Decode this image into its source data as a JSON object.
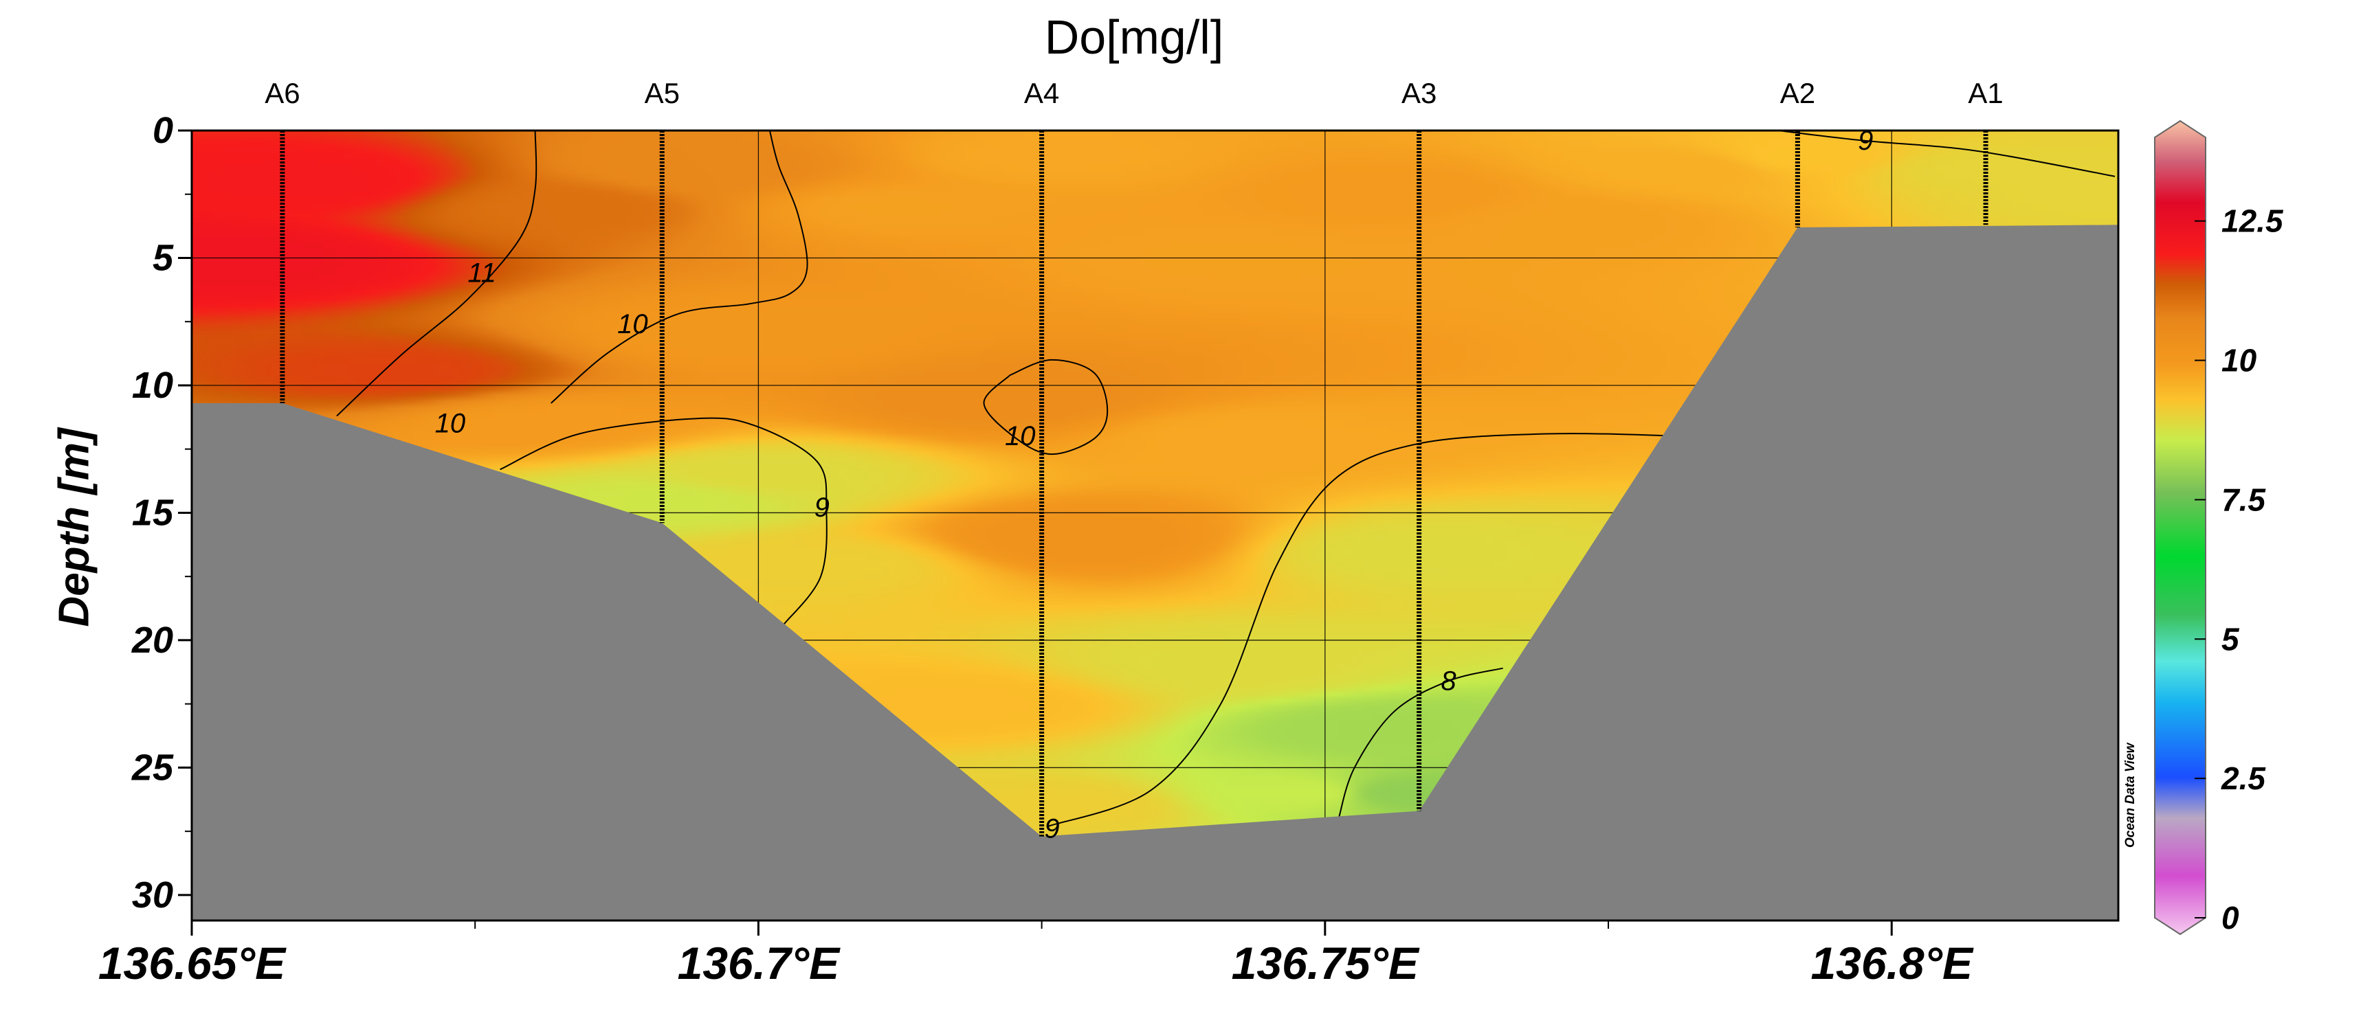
{
  "chart_data": {
    "type": "heatmap",
    "title": "Do[mg/l]",
    "ylabel": "Depth [m]",
    "xlabel": "",
    "xlim": [
      136.65,
      136.82
    ],
    "ylim": [
      31,
      0
    ],
    "x_ticks": [
      136.65,
      136.7,
      136.75,
      136.8
    ],
    "x_tick_labels": [
      "136.65°E",
      "136.7°E",
      "136.75°E",
      "136.8°E"
    ],
    "y_ticks": [
      0,
      5,
      10,
      15,
      20,
      25,
      30
    ],
    "y_tick_labels": [
      "0",
      "5",
      "10",
      "15",
      "20",
      "25",
      "30"
    ],
    "grid": true,
    "stations": [
      {
        "name": "A6",
        "x": 136.658,
        "max_depth": 10.7
      },
      {
        "name": "A5",
        "x": 136.6915,
        "max_depth": 15.4
      },
      {
        "name": "A4",
        "x": 136.725,
        "max_depth": 27.7
      },
      {
        "name": "A3",
        "x": 136.7583,
        "max_depth": 26.7
      },
      {
        "name": "A2",
        "x": 136.7917,
        "max_depth": 3.8
      },
      {
        "name": "A1",
        "x": 136.8083,
        "max_depth": 3.7
      }
    ],
    "bottom_profile": [
      [
        136.65,
        10.7
      ],
      [
        136.658,
        10.7
      ],
      [
        136.6915,
        15.4
      ],
      [
        136.725,
        27.7
      ],
      [
        136.7583,
        26.7
      ],
      [
        136.7917,
        3.8
      ],
      [
        136.82,
        3.7
      ]
    ],
    "fields": [
      {
        "x": 136.654,
        "y": 5.0,
        "v": 12.0
      },
      {
        "x": 136.66,
        "y": 2.0,
        "v": 11.8
      },
      {
        "x": 136.668,
        "y": 9.5,
        "v": 11.4
      },
      {
        "x": 136.683,
        "y": 3.0,
        "v": 10.9
      },
      {
        "x": 136.682,
        "y": 11.5,
        "v": 9.8
      },
      {
        "x": 136.695,
        "y": 1.5,
        "v": 10.5
      },
      {
        "x": 136.698,
        "y": 8.0,
        "v": 9.9
      },
      {
        "x": 136.692,
        "y": 14.5,
        "v": 8.6
      },
      {
        "x": 136.7,
        "y": 13.5,
        "v": 8.8
      },
      {
        "x": 136.706,
        "y": 17.0,
        "v": 9.0
      },
      {
        "x": 136.712,
        "y": 3.0,
        "v": 9.7
      },
      {
        "x": 136.725,
        "y": 1.0,
        "v": 9.6
      },
      {
        "x": 136.722,
        "y": 10.5,
        "v": 10.3
      },
      {
        "x": 136.728,
        "y": 16.0,
        "v": 10.1
      },
      {
        "x": 136.718,
        "y": 22.5,
        "v": 9.3
      },
      {
        "x": 136.727,
        "y": 26.5,
        "v": 9.0
      },
      {
        "x": 136.742,
        "y": 5.0,
        "v": 9.7
      },
      {
        "x": 136.742,
        "y": 12.0,
        "v": 9.6
      },
      {
        "x": 136.742,
        "y": 21.0,
        "v": 8.8
      },
      {
        "x": 136.748,
        "y": 26.0,
        "v": 8.5
      },
      {
        "x": 136.757,
        "y": 2.5,
        "v": 9.8
      },
      {
        "x": 136.758,
        "y": 16.5,
        "v": 8.8
      },
      {
        "x": 136.756,
        "y": 23.5,
        "v": 8.1
      },
      {
        "x": 136.757,
        "y": 26.0,
        "v": 7.9
      },
      {
        "x": 136.772,
        "y": 3.5,
        "v": 9.7
      },
      {
        "x": 136.782,
        "y": 1.5,
        "v": 9.5
      },
      {
        "x": 136.792,
        "y": 1.0,
        "v": 9.2
      },
      {
        "x": 136.808,
        "y": 1.5,
        "v": 8.9
      },
      {
        "x": 136.818,
        "y": 2.5,
        "v": 8.9
      }
    ],
    "colorbar": {
      "min": 0,
      "max": 14,
      "ticks": [
        0,
        2.5,
        5,
        7.5,
        10,
        12.5
      ],
      "tick_labels": [
        "0",
        "2.5",
        "5",
        "7.5",
        "10",
        "12.5"
      ],
      "stops": [
        {
          "v": 0.0,
          "c": "#f5c8ef"
        },
        {
          "v": 1.0,
          "c": "#d24ed0"
        },
        {
          "v": 2.0,
          "c": "#b9a8c4"
        },
        {
          "v": 2.7,
          "c": "#1b4eff"
        },
        {
          "v": 4.0,
          "c": "#18b4f0"
        },
        {
          "v": 4.7,
          "c": "#59e7de"
        },
        {
          "v": 5.5,
          "c": "#3ac05c"
        },
        {
          "v": 6.5,
          "c": "#00d830"
        },
        {
          "v": 7.6,
          "c": "#76c058"
        },
        {
          "v": 8.5,
          "c": "#c8ec4c"
        },
        {
          "v": 9.2,
          "c": "#fcc22c"
        },
        {
          "v": 9.8,
          "c": "#f49a1e"
        },
        {
          "v": 10.6,
          "c": "#e8861a"
        },
        {
          "v": 11.2,
          "c": "#cf5c06"
        },
        {
          "v": 11.7,
          "c": "#f81c1c"
        },
        {
          "v": 12.6,
          "c": "#e00828"
        },
        {
          "v": 13.3,
          "c": "#d06078"
        },
        {
          "v": 14.0,
          "c": "#f8c2a4"
        }
      ]
    },
    "contour_labels": [
      {
        "text": "11",
        "x": 136.6756,
        "y": 5.6
      },
      {
        "text": "10",
        "x": 136.6889,
        "y": 7.6
      },
      {
        "text": "10",
        "x": 136.6728,
        "y": 11.5
      },
      {
        "text": "9",
        "x": 136.7056,
        "y": 14.8
      },
      {
        "text": "10",
        "x": 136.7231,
        "y": 12.0
      },
      {
        "text": "8",
        "x": 136.7609,
        "y": 21.6
      },
      {
        "text": "9",
        "x": 136.7259,
        "y": 27.4
      },
      {
        "text": "9",
        "x": 136.7977,
        "y": 0.4
      }
    ],
    "contour_lines": [
      {
        "level": 11,
        "points": [
          [
            136.6628,
            11.2
          ],
          [
            136.6685,
            8.8
          ],
          [
            136.6744,
            6.6
          ],
          [
            136.679,
            4.2
          ],
          [
            136.6803,
            2.3
          ],
          [
            136.6803,
            0.0
          ]
        ]
      },
      {
        "level": 10,
        "points": [
          [
            136.6817,
            10.7
          ],
          [
            136.6868,
            8.7
          ],
          [
            136.6929,
            7.2
          ],
          [
            136.6992,
            6.8
          ],
          [
            136.7028,
            6.4
          ],
          [
            136.7043,
            5.4
          ],
          [
            136.7035,
            3.3
          ],
          [
            136.7018,
            1.4
          ],
          [
            136.701,
            0.0
          ]
        ]
      },
      {
        "level": 9,
        "points": [
          [
            136.6772,
            13.3
          ],
          [
            136.6842,
            11.9
          ],
          [
            136.6946,
            11.3
          ],
          [
            136.6998,
            11.6
          ],
          [
            136.7052,
            13.0
          ],
          [
            136.706,
            14.9
          ],
          [
            136.7055,
            17.5
          ],
          [
            136.7022,
            19.4
          ]
        ]
      },
      {
        "level": 10,
        "points": [
          [
            136.7222,
            9.6
          ],
          [
            136.7258,
            9.0
          ],
          [
            136.7296,
            9.5
          ],
          [
            136.7308,
            11.0
          ],
          [
            136.7296,
            12.1
          ],
          [
            136.7258,
            12.7
          ],
          [
            136.7225,
            12.0
          ],
          [
            136.7199,
            10.7
          ],
          [
            136.7222,
            9.6
          ]
        ]
      },
      {
        "level": 9,
        "points": [
          [
            136.7256,
            27.3
          ],
          [
            136.7346,
            25.9
          ],
          [
            136.7408,
            22.5
          ],
          [
            136.7458,
            17.0
          ],
          [
            136.7508,
            13.7
          ],
          [
            136.7581,
            12.3
          ],
          [
            136.7697,
            11.9
          ],
          [
            136.7821,
            12.0
          ]
        ]
      },
      {
        "level": 8,
        "points": [
          [
            136.7512,
            27.0
          ],
          [
            136.7526,
            25.0
          ],
          [
            136.7561,
            22.8
          ],
          [
            136.7609,
            21.6
          ],
          [
            136.7657,
            21.1
          ]
        ]
      },
      {
        "level": 9,
        "points": [
          [
            136.79,
            0.0
          ],
          [
            136.7976,
            0.4
          ],
          [
            136.8075,
            0.8
          ],
          [
            136.8197,
            1.8
          ]
        ]
      }
    ]
  }
}
